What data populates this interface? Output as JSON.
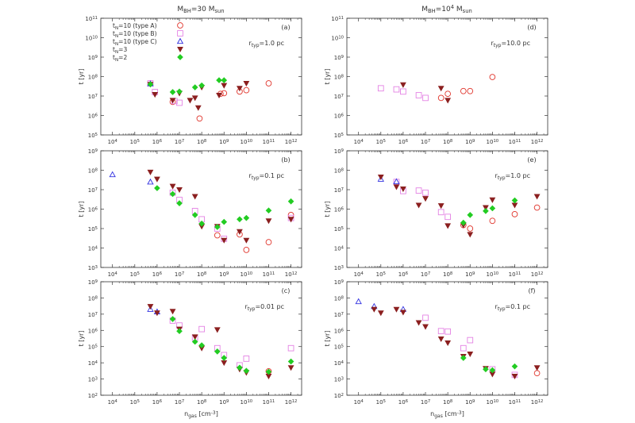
{
  "figure": {
    "column_titles": [
      "M_BH=30 M_sun",
      "M_BH=10^4 M_sun"
    ],
    "xlabel": "n_gas [cm^-3]",
    "ylabel": "t [yr]"
  },
  "colors": {
    "typeA": "#e0342b",
    "typeB": "#e483e4",
    "typeC": "#3030e0",
    "N3": "#8b1f1f",
    "N2": "#22cc22",
    "axis": "#333333"
  },
  "chart_data": [
    {
      "type": "scatter",
      "panel": "(a)",
      "annotation": "r_typ=1.0 pc",
      "x_scale": "log",
      "y_scale": "log",
      "xlim": [
        3000.0,
        3000000000000.0
      ],
      "ylim": [
        100000.0,
        100000000000.0
      ],
      "show_legend": true,
      "legend_position": "top-left",
      "series": [
        {
          "name": "t_N=10 (type A)",
          "marker": "circle",
          "points": [
            [
              5000000.0,
              5000000.0
            ],
            [
              80000000.0,
              700000.0
            ],
            [
              700000000.0,
              13000000.0
            ],
            [
              1000000000.0,
              14000000.0
            ],
            [
              5000000000.0,
              17000000.0
            ],
            [
              10000000000.0,
              20000000.0
            ],
            [
              100000000000.0,
              45000000.0
            ]
          ]
        },
        {
          "name": "t_N=10 (type B)",
          "marker": "square",
          "points": [
            [
              500000.0,
              45000000.0
            ],
            [
              800000.0,
              16000000.0
            ],
            [
              6000000.0,
              5500000.0
            ],
            [
              10000000.0,
              4500000.0
            ]
          ]
        },
        {
          "name": "t_N=10 (type C)",
          "marker": "triangle-up",
          "points": [
            [
              500000.0,
              43000000.0
            ]
          ]
        },
        {
          "name": "t_N=3",
          "marker": "triangle-down",
          "points": [
            [
              500000.0,
              40000000.0
            ],
            [
              800000.0,
              12000000.0
            ],
            [
              5000000.0,
              6000000.0
            ],
            [
              10000000.0,
              14000000.0
            ],
            [
              30000000.0,
              6000000.0
            ],
            [
              50000000.0,
              8000000.0
            ],
            [
              70000000.0,
              2500000.0
            ],
            [
              100000000.0,
              28000000.0
            ],
            [
              600000000.0,
              11000000.0
            ],
            [
              1000000000.0,
              35000000.0
            ],
            [
              5000000000.0,
              25000000.0
            ],
            [
              10000000000.0,
              45000000.0
            ]
          ]
        },
        {
          "name": "t_N=2",
          "marker": "diamond",
          "points": [
            [
              500000.0,
              40000000.0
            ],
            [
              5000000.0,
              16000000.0
            ],
            [
              10000000.0,
              17000000.0
            ],
            [
              50000000.0,
              28000000.0
            ],
            [
              100000000.0,
              35000000.0
            ],
            [
              600000000.0,
              65000000.0
            ],
            [
              1000000000.0,
              65000000.0
            ]
          ]
        }
      ]
    },
    {
      "type": "scatter",
      "panel": "(d)",
      "annotation": "r_typ=10.0 pc",
      "x_scale": "log",
      "y_scale": "log",
      "xlim": [
        3000.0,
        3000000000000.0
      ],
      "ylim": [
        100000.0,
        100000000000.0
      ],
      "series": [
        {
          "name": "t_N=10 (type A)",
          "marker": "circle",
          "points": [
            [
              50000000.0,
              8000000.0
            ],
            [
              100000000.0,
              13000000.0
            ],
            [
              500000000.0,
              18000000.0
            ],
            [
              1000000000.0,
              18000000.0
            ],
            [
              10000000000.0,
              95000000.0
            ]
          ]
        },
        {
          "name": "t_N=10 (type B)",
          "marker": "square",
          "points": [
            [
              100000.0,
              25000000.0
            ],
            [
              500000.0,
              22000000.0
            ],
            [
              1000000.0,
              17000000.0
            ],
            [
              5000000.0,
              11000000.0
            ],
            [
              10000000.0,
              8000000.0
            ]
          ]
        },
        {
          "name": "t_N=3",
          "marker": "triangle-down",
          "points": [
            [
              1000000.0,
              38000000.0
            ],
            [
              50000000.0,
              25000000.0
            ],
            [
              100000000.0,
              6000000.0
            ]
          ]
        }
      ]
    },
    {
      "type": "scatter",
      "panel": "(b)",
      "annotation": "r_typ=0.1 pc",
      "x_scale": "log",
      "y_scale": "log",
      "xlim": [
        3000.0,
        3000000000000.0
      ],
      "ylim": [
        1000.0,
        1000000000.0
      ],
      "series": [
        {
          "name": "t_N=10 (type A)",
          "marker": "circle",
          "points": [
            [
              500000000.0,
              45000.0
            ],
            [
              10000000000.0,
              8000.0
            ],
            [
              5000000000.0,
              50000.0
            ],
            [
              100000000000.0,
              20000.0
            ],
            [
              1000000000000.0,
              500000.0
            ]
          ]
        },
        {
          "name": "t_N=10 (type B)",
          "marker": "square",
          "points": [
            [
              5000000.0,
              7000000.0
            ],
            [
              10000000.0,
              3000000.0
            ],
            [
              50000000.0,
              800000.0
            ],
            [
              100000000.0,
              300000.0
            ],
            [
              500000000.0,
              100000.0
            ],
            [
              1000000000.0,
              30000.0
            ],
            [
              1000000000000.0,
              350000.0
            ]
          ]
        },
        {
          "name": "t_N=10 (type C)",
          "marker": "triangle-up",
          "points": [
            [
              10000.0,
              60000000.0
            ],
            [
              500000.0,
              25000000.0
            ]
          ]
        },
        {
          "name": "t_N=3",
          "marker": "triangle-down",
          "points": [
            [
              500000.0,
              80000000.0
            ],
            [
              1000000.0,
              35000000.0
            ],
            [
              5000000.0,
              15000000.0
            ],
            [
              10000000.0,
              10000000.0
            ],
            [
              50000000.0,
              4500000.0
            ],
            [
              100000000.0,
              130000.0
            ],
            [
              500000000.0,
              130000.0
            ],
            [
              1000000000.0,
              25000.0
            ],
            [
              5000000000.0,
              70000.0
            ],
            [
              10000000000.0,
              25000.0
            ],
            [
              100000000000.0,
              250000.0
            ],
            [
              1000000000000.0,
              300000.0
            ]
          ]
        },
        {
          "name": "t_N=2",
          "marker": "diamond",
          "points": [
            [
              1000000.0,
              12000000.0
            ],
            [
              5000000.0,
              6000000.0
            ],
            [
              10000000.0,
              2000000.0
            ],
            [
              50000000.0,
              500000.0
            ],
            [
              100000000.0,
              180000.0
            ],
            [
              500000000.0,
              120000.0
            ],
            [
              1000000000.0,
              220000.0
            ],
            [
              5000000000.0,
              300000.0
            ],
            [
              10000000000.0,
              350000.0
            ],
            [
              100000000000.0,
              850000.0
            ],
            [
              1000000000000.0,
              2500000.0
            ]
          ]
        }
      ]
    },
    {
      "type": "scatter",
      "panel": "(e)",
      "annotation": "r_typ=1.0 pc",
      "x_scale": "log",
      "y_scale": "log",
      "xlim": [
        3000.0,
        3000000000000.0
      ],
      "ylim": [
        1000.0,
        1000000000.0
      ],
      "series": [
        {
          "name": "t_N=10 (type A)",
          "marker": "circle",
          "points": [
            [
              500000000.0,
              150000.0
            ],
            [
              1000000000.0,
              100000.0
            ],
            [
              10000000000.0,
              250000.0
            ],
            [
              100000000000.0,
              550000.0
            ],
            [
              1000000000000.0,
              1200000.0
            ]
          ]
        },
        {
          "name": "t_N=10 (type B)",
          "marker": "square",
          "points": [
            [
              500000.0,
              25000000.0
            ],
            [
              1000000.0,
              8500000.0
            ],
            [
              5000000.0,
              9000000.0
            ],
            [
              10000000.0,
              7000000.0
            ],
            [
              50000000.0,
              700000.0
            ],
            [
              100000000.0,
              400000.0
            ]
          ]
        },
        {
          "name": "t_N=10 (type C)",
          "marker": "triangle-up",
          "points": [
            [
              100000.0,
              35000000.0
            ],
            [
              500000.0,
              26000000.0
            ]
          ]
        },
        {
          "name": "t_N=3",
          "marker": "triangle-down",
          "points": [
            [
              100000.0,
              45000000.0
            ],
            [
              500000.0,
              14000000.0
            ],
            [
              1000000.0,
              11000000.0
            ],
            [
              5000000.0,
              1600000.0
            ],
            [
              10000000.0,
              3500000.0
            ],
            [
              50000000.0,
              1500000.0
            ],
            [
              100000000.0,
              140000.0
            ],
            [
              500000000.0,
              150000.0
            ],
            [
              1000000000.0,
              50000.0
            ],
            [
              5000000000.0,
              1200000.0
            ],
            [
              10000000000.0,
              3000000.0
            ],
            [
              100000000000.0,
              1600000.0
            ],
            [
              1000000000000.0,
              4500000.0
            ]
          ]
        },
        {
          "name": "t_N=2",
          "marker": "diamond",
          "points": [
            [
              500000000.0,
              200000.0
            ],
            [
              1000000000.0,
              500000.0
            ],
            [
              5000000000.0,
              800000.0
            ],
            [
              10000000000.0,
              1100000.0
            ],
            [
              100000000000.0,
              2800000.0
            ]
          ]
        }
      ]
    },
    {
      "type": "scatter",
      "panel": "(c)",
      "annotation": "r_typ=0.01 pc",
      "x_scale": "log",
      "y_scale": "log",
      "xlim": [
        3000.0,
        3000000000000.0
      ],
      "ylim": [
        100.0,
        1000000000.0
      ],
      "series": [
        {
          "name": "t_N=10 (type A)",
          "marker": "circle",
          "points": [
            [
              100000000000.0,
              3000.0
            ]
          ]
        },
        {
          "name": "t_N=10 (type B)",
          "marker": "square",
          "points": [
            [
              5000000.0,
              4000000.0
            ],
            [
              10000000.0,
              2000000.0
            ],
            [
              50000000.0,
              350000.0
            ],
            [
              100000000.0,
              1200000.0
            ],
            [
              500000000.0,
              80000.0
            ],
            [
              1000000000.0,
              30000.0
            ],
            [
              5000000000.0,
              7000.0
            ],
            [
              10000000000.0,
              18000.0
            ],
            [
              1000000000000.0,
              80000.0
            ]
          ]
        },
        {
          "name": "t_N=10 (type C)",
          "marker": "triangle-up",
          "points": [
            [
              500000.0,
              20000000.0
            ],
            [
              1000000.0,
              14000000.0
            ]
          ]
        },
        {
          "name": "t_N=3",
          "marker": "triangle-down",
          "points": [
            [
              500000.0,
              30000000.0
            ],
            [
              1000000.0,
              12000000.0
            ],
            [
              5000000.0,
              15000000.0
            ],
            [
              10000000.0,
              1200000.0
            ],
            [
              50000000.0,
              400000.0
            ],
            [
              100000000.0,
              80000.0
            ],
            [
              500000000.0,
              1100000.0
            ],
            [
              1000000000.0,
              10000.0
            ],
            [
              5000000000.0,
              4000.0
            ],
            [
              10000000000.0,
              2500.0
            ],
            [
              100000000000.0,
              1500.0
            ],
            [
              1000000000000.0,
              5000.0
            ]
          ]
        },
        {
          "name": "t_N=2",
          "marker": "diamond",
          "points": [
            [
              5000000.0,
              5000000.0
            ],
            [
              10000000.0,
              900000.0
            ],
            [
              50000000.0,
              200000.0
            ],
            [
              100000000.0,
              120000.0
            ],
            [
              500000000.0,
              50000.0
            ],
            [
              1000000000.0,
              20000.0
            ],
            [
              5000000000.0,
              5000.0
            ],
            [
              10000000000.0,
              3200.0
            ],
            [
              100000000000.0,
              2800.0
            ],
            [
              1000000000000.0,
              12000.0
            ]
          ]
        }
      ]
    },
    {
      "type": "scatter",
      "panel": "(f)",
      "annotation": "r_typ=0.1 pc",
      "x_scale": "log",
      "y_scale": "log",
      "xlim": [
        3000.0,
        3000000000000.0
      ],
      "ylim": [
        100.0,
        1000000000.0
      ],
      "series": [
        {
          "name": "t_N=10 (type A)",
          "marker": "circle",
          "points": [
            [
              1000000000000.0,
              2300.0
            ]
          ]
        },
        {
          "name": "t_N=10 (type B)",
          "marker": "square",
          "points": [
            [
              10000000.0,
              6000000.0
            ],
            [
              50000000.0,
              900000.0
            ],
            [
              100000000.0,
              850000.0
            ],
            [
              500000000.0,
              80000.0
            ],
            [
              1000000000.0,
              250000.0
            ],
            [
              10000000000.0,
              4000.0
            ],
            [
              100000000000.0,
              1800.0
            ]
          ]
        },
        {
          "name": "t_N=10 (type C)",
          "marker": "triangle-up",
          "points": [
            [
              10000.0,
              60000000.0
            ],
            [
              50000.0,
              30000000.0
            ],
            [
              1000000.0,
              20000000.0
            ]
          ]
        },
        {
          "name": "t_N=3",
          "marker": "triangle-down",
          "points": [
            [
              50000.0,
              20000000.0
            ],
            [
              100000.0,
              12000000.0
            ],
            [
              500000.0,
              20000000.0
            ],
            [
              1000000.0,
              13000000.0
            ],
            [
              5000000.0,
              3000000.0
            ],
            [
              10000000.0,
              1700000.0
            ],
            [
              50000000.0,
              300000.0
            ],
            [
              100000000.0,
              170000.0
            ],
            [
              500000000.0,
              25000.0
            ],
            [
              1000000000.0,
              35000.0
            ],
            [
              5000000000.0,
              4500.0
            ],
            [
              10000000000.0,
              2000.0
            ],
            [
              100000000000.0,
              1500.0
            ],
            [
              1000000000000.0,
              5000.0
            ]
          ]
        },
        {
          "name": "t_N=2",
          "marker": "diamond",
          "points": [
            [
              500000000.0,
              20000.0
            ],
            [
              5000000000.0,
              4000.0
            ],
            [
              10000000000.0,
              3500.0
            ],
            [
              100000000000.0,
              6000.0
            ]
          ]
        }
      ]
    }
  ]
}
